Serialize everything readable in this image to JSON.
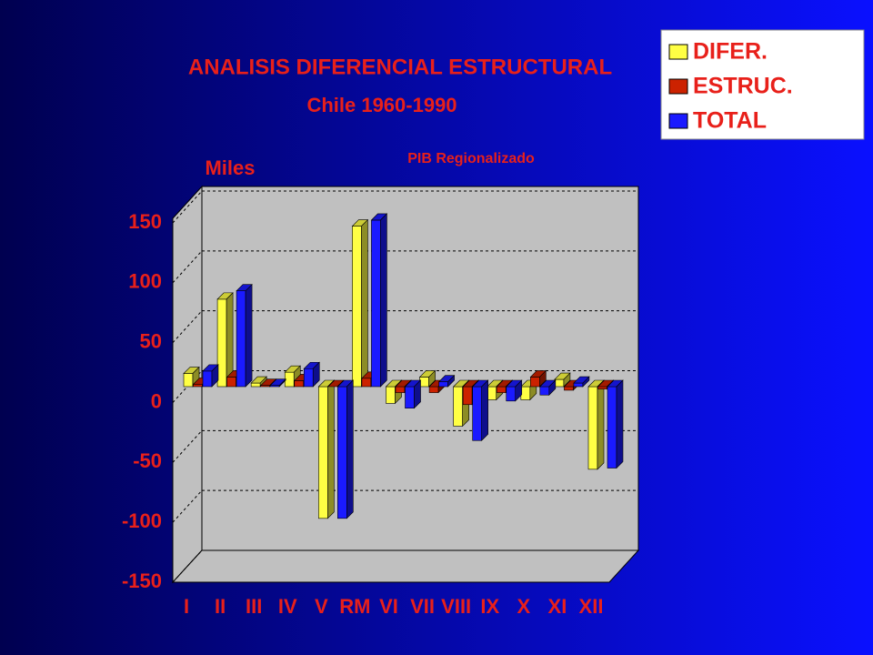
{
  "chart_data": {
    "type": "bar3d",
    "title": "ANALISIS DIFERENCIAL ESTRUCTURAL",
    "subtitle": "Chile 1960-1990",
    "y_label": "Miles",
    "annotation": "PIB Regionalizado",
    "categories": [
      "I",
      "II",
      "III",
      "IV",
      "V",
      "RM",
      "VI",
      "VII",
      "VIII",
      "IX",
      "X",
      "XI",
      "XII"
    ],
    "series": [
      {
        "name": "DIFER.",
        "color": "#ffff44",
        "values": [
          11,
          73,
          3,
          12,
          -110,
          134,
          -14,
          8,
          -33,
          -11,
          -11,
          6,
          -69
        ]
      },
      {
        "name": "ESTRUC.",
        "color": "#cc2200",
        "values": [
          2,
          8,
          1,
          5,
          0,
          7,
          -5,
          -5,
          -15,
          -5,
          8,
          -3,
          -2
        ]
      },
      {
        "name": "TOTAL",
        "color": "#1a1aff",
        "values": [
          13,
          80,
          1,
          15,
          -110,
          139,
          -18,
          4,
          -45,
          -12,
          -7,
          3,
          -68
        ]
      }
    ],
    "ylim": [
      -150,
      150
    ],
    "yticks": [
      -150,
      -100,
      -50,
      0,
      50,
      100,
      150
    ],
    "grid": true,
    "legend": "top-right"
  }
}
